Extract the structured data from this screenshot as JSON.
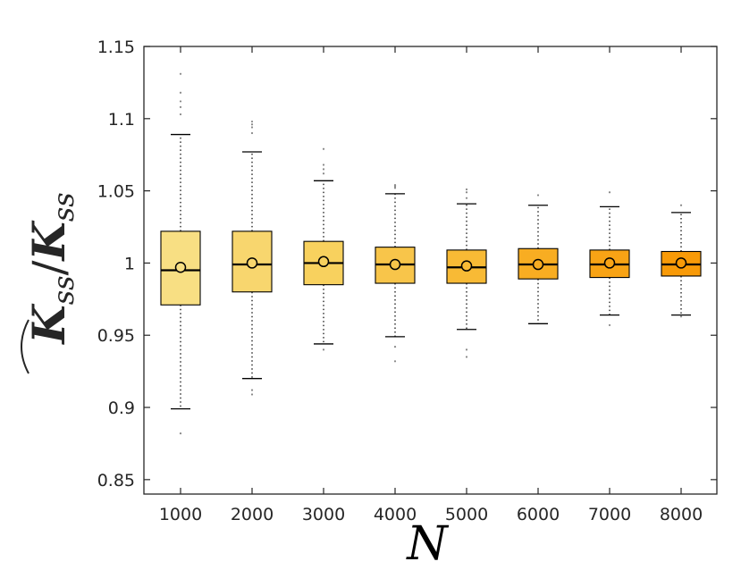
{
  "chart_data": {
    "type": "box",
    "xlabel": "N",
    "ylabel": {
      "numerator": "K",
      "subscript": "ss",
      "separator": "/",
      "denominator": "K"
    },
    "ylim": [
      0.84,
      1.15
    ],
    "yticks": [
      "0.85",
      "0.9",
      "0.95",
      "1",
      "1.05",
      "1.1",
      "1.15"
    ],
    "ytick_values": [
      0.85,
      0.9,
      0.95,
      1.0,
      1.05,
      1.1,
      1.15
    ],
    "categories": [
      "1000",
      "2000",
      "3000",
      "4000",
      "5000",
      "6000",
      "7000",
      "8000"
    ],
    "box_colors": [
      "#f8df83",
      "#f8d66e",
      "#f8d15e",
      "#f8c54a",
      "#f8ba35",
      "#f8ad22",
      "#f8a315",
      "#f89a08"
    ],
    "boxes": [
      {
        "x": "1000",
        "whisker_low": 0.899,
        "q1": 0.971,
        "median": 0.995,
        "q3": 1.022,
        "whisker_high": 1.089,
        "mean": 0.997,
        "outliers": [
          1.103,
          1.108,
          1.112,
          1.118,
          1.131,
          0.882
        ]
      },
      {
        "x": "2000",
        "whisker_low": 0.92,
        "q1": 0.98,
        "median": 0.999,
        "q3": 1.022,
        "whisker_high": 1.077,
        "mean": 1.0,
        "outliers": [
          1.09,
          1.094,
          1.096,
          1.098,
          0.909,
          0.912
        ]
      },
      {
        "x": "3000",
        "whisker_low": 0.944,
        "q1": 0.985,
        "median": 1.0,
        "q3": 1.015,
        "whisker_high": 1.057,
        "mean": 1.001,
        "outliers": [
          1.062,
          1.065,
          1.068,
          1.079,
          0.94
        ]
      },
      {
        "x": "4000",
        "whisker_low": 0.949,
        "q1": 0.986,
        "median": 0.999,
        "q3": 1.011,
        "whisker_high": 1.048,
        "mean": 0.999,
        "outliers": [
          1.052,
          1.053,
          1.054,
          0.932,
          0.942
        ]
      },
      {
        "x": "5000",
        "whisker_low": 0.954,
        "q1": 0.986,
        "median": 0.997,
        "q3": 1.009,
        "whisker_high": 1.041,
        "mean": 0.998,
        "outliers": [
          1.045,
          1.049,
          1.051,
          0.935,
          0.94
        ]
      },
      {
        "x": "6000",
        "whisker_low": 0.958,
        "q1": 0.989,
        "median": 0.999,
        "q3": 1.01,
        "whisker_high": 1.04,
        "mean": 0.999,
        "outliers": [
          1.047
        ]
      },
      {
        "x": "7000",
        "whisker_low": 0.964,
        "q1": 0.99,
        "median": 0.999,
        "q3": 1.009,
        "whisker_high": 1.039,
        "mean": 1.0,
        "outliers": [
          1.049,
          0.957
        ]
      },
      {
        "x": "8000",
        "whisker_low": 0.964,
        "q1": 0.991,
        "median": 0.999,
        "q3": 1.008,
        "whisker_high": 1.035,
        "mean": 1.0,
        "outliers": [
          1.04,
          0.963
        ]
      }
    ],
    "grid": false,
    "legend": "none"
  }
}
